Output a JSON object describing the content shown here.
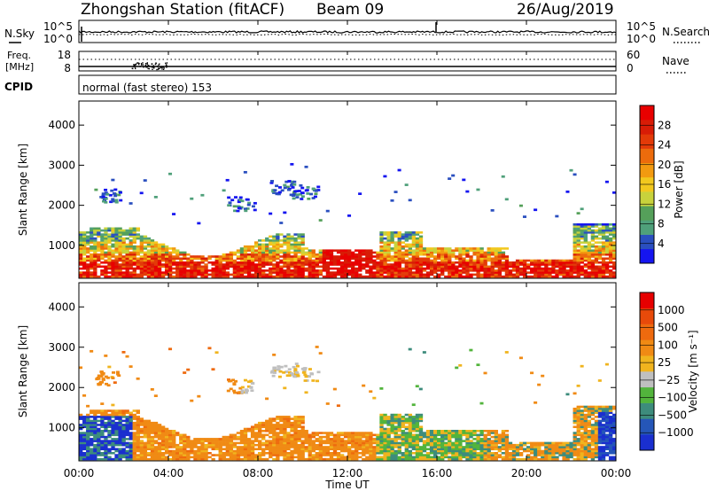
{
  "header": {
    "station": "Zhongshan Station (fitACF)",
    "beam": "Beam 09",
    "date": "26/Aug/2019"
  },
  "strip_noise": {
    "left_label": "N.Sky",
    "right_label": "N.Search",
    "left_ticks": [
      "10^5",
      "10^0"
    ],
    "right_ticks": [
      "10^5",
      "10^0"
    ]
  },
  "strip_freq": {
    "left_label_1": "Freq.",
    "left_label_2": "[MHz]",
    "right_label": "Nave",
    "left_ticks": [
      "18",
      "8"
    ],
    "right_ticks": [
      "60",
      "0"
    ]
  },
  "cpid": {
    "label": "CPID",
    "value": "normal (fast stereo) 153"
  },
  "chart_data": [
    {
      "type": "heatmap",
      "name": "power",
      "ylabel": "Slant Range [km]",
      "ylim": [
        180,
        4600
      ],
      "yticks": [
        "1000",
        "2000",
        "3000",
        "4000"
      ],
      "colorbar_label": "Power [dB]",
      "colorbar_ticks": [
        "4",
        "8",
        "12",
        "16",
        "20",
        "24",
        "28"
      ],
      "colorbar_range": [
        0,
        32
      ],
      "colors": [
        "#1515f0",
        "#2a4fbf",
        "#4fa07a",
        "#55a05a",
        "#c8d23c",
        "#f2c81e",
        "#f29a10",
        "#ec6b0c",
        "#e33a08",
        "#d81c06",
        "#e80000"
      ]
    },
    {
      "type": "heatmap",
      "name": "velocity",
      "ylabel": "Slant Range [km]",
      "ylim": [
        180,
        4600
      ],
      "yticks": [
        "1000",
        "2000",
        "3000",
        "4000"
      ],
      "colorbar_label": "Velocity [m s⁻¹]",
      "colorbar_ticks": [
        "1000",
        "500",
        "100",
        "25",
        "−25",
        "−100",
        "−500",
        "−1000"
      ],
      "colors": [
        "#1a2fcf",
        "#2556b8",
        "#3d8c7c",
        "#52b43c",
        "#bfbfbf",
        "#f0b41e",
        "#f08a14",
        "#ee6a0e",
        "#e84a0a",
        "#e60000"
      ]
    }
  ],
  "xaxis": {
    "label": "Time UT",
    "ticks": [
      "00:00",
      "04:00",
      "08:00",
      "12:00",
      "16:00",
      "20:00",
      "00:00"
    ]
  }
}
